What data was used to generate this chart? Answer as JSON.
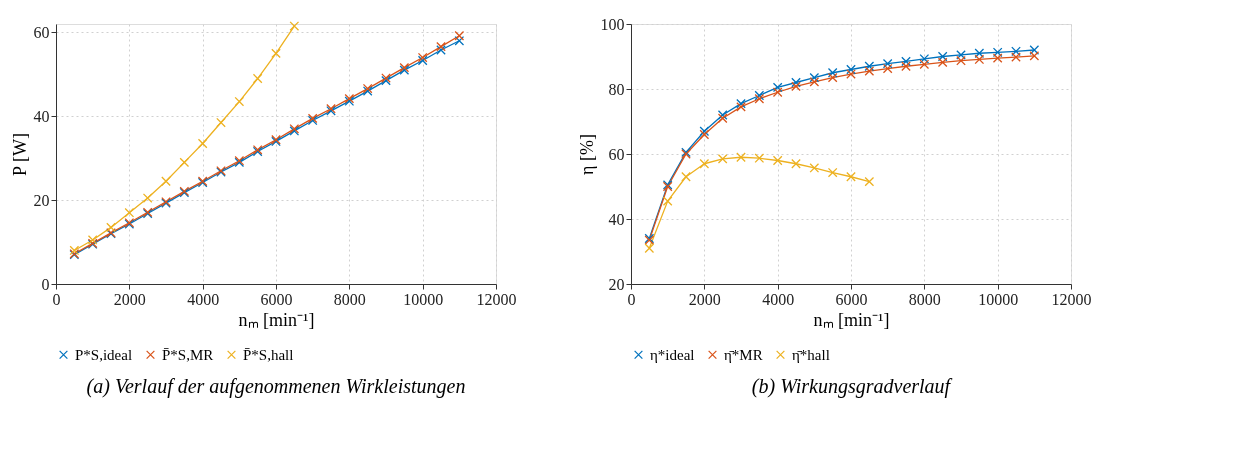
{
  "chart_data": [
    {
      "type": "line",
      "title": "(a) Verlauf der aufgenommenen Wirkleistungen",
      "xlabel": "nₘ [min⁻¹]",
      "ylabel": "P [W]",
      "xlim": [
        0,
        12000
      ],
      "xticks": [
        0,
        2000,
        4000,
        6000,
        8000,
        10000,
        12000
      ],
      "ylim": [
        0,
        62
      ],
      "yticks": [
        0,
        20,
        40,
        60
      ],
      "grid": true,
      "legend": "bottom",
      "marker": "cross",
      "line_style": "solid",
      "x": [
        500,
        1000,
        1500,
        2000,
        2500,
        3000,
        3500,
        4000,
        4500,
        5000,
        5500,
        6000,
        6500,
        7000,
        7500,
        8000,
        8500,
        9000,
        9500,
        10000,
        10500,
        11000
      ],
      "series": [
        {
          "name": "P*S,ideal",
          "color": "#0072bd",
          "values": [
            7,
            9.5,
            12,
            14.3,
            16.8,
            19.3,
            21.8,
            24.2,
            26.7,
            29,
            31.6,
            34,
            36.5,
            39,
            41.3,
            43.6,
            46,
            48.5,
            51,
            53.3,
            55.8,
            58
          ]
        },
        {
          "name": "P̄*S,MR",
          "color": "#d95319",
          "values": [
            7.2,
            9.7,
            12.2,
            14.6,
            17.1,
            19.6,
            22.1,
            24.5,
            27,
            29.4,
            32,
            34.4,
            37,
            39.5,
            41.8,
            44.2,
            46.6,
            49.1,
            51.6,
            54,
            56.6,
            59.2
          ]
        },
        {
          "name": "P̄*S,hall",
          "color": "#edb120",
          "x": [
            500,
            1000,
            1500,
            2000,
            2500,
            3000,
            3500,
            4000,
            4500,
            5000,
            5500,
            6000,
            6500
          ],
          "values": [
            8,
            10.5,
            13.5,
            17,
            20.5,
            24.5,
            29,
            33.5,
            38.5,
            43.5,
            49,
            55,
            61.5
          ]
        }
      ]
    },
    {
      "type": "line",
      "title": "(b) Wirkungsgradverlauf",
      "xlabel": "nₘ [min⁻¹]",
      "ylabel": "η [%]",
      "xlim": [
        0,
        12000
      ],
      "xticks": [
        0,
        2000,
        4000,
        6000,
        8000,
        10000,
        12000
      ],
      "ylim": [
        20,
        100
      ],
      "yticks": [
        20,
        40,
        60,
        80,
        100
      ],
      "grid": true,
      "legend": "bottom",
      "marker": "cross",
      "line_style": "solid",
      "x": [
        500,
        1000,
        1500,
        2000,
        2500,
        3000,
        3500,
        4000,
        4500,
        5000,
        5500,
        6000,
        6500,
        7000,
        7500,
        8000,
        8500,
        9000,
        9500,
        10000,
        10500,
        11000
      ],
      "series": [
        {
          "name": "η*ideal",
          "color": "#0072bd",
          "values": [
            34,
            50.5,
            60.5,
            67,
            72,
            75.5,
            78,
            80.5,
            82,
            83.5,
            85,
            86,
            87,
            87.8,
            88.5,
            89.3,
            90,
            90.5,
            91,
            91.3,
            91.6,
            92
          ]
        },
        {
          "name": "η̄*MR",
          "color": "#d95319",
          "values": [
            33.5,
            50,
            60,
            66,
            71,
            74.5,
            77,
            79,
            80.8,
            82.2,
            83.5,
            84.6,
            85.5,
            86.3,
            87,
            87.6,
            88.2,
            88.7,
            89.1,
            89.5,
            89.8,
            90.2
          ]
        },
        {
          "name": "η̄*hall",
          "color": "#edb120",
          "x": [
            500,
            1000,
            1500,
            2000,
            2500,
            3000,
            3500,
            4000,
            4500,
            5000,
            5500,
            6000,
            6500
          ],
          "values": [
            31,
            45.5,
            53,
            57,
            58.5,
            59,
            58.7,
            58,
            57,
            55.7,
            54.3,
            53,
            51.5
          ]
        }
      ]
    }
  ]
}
